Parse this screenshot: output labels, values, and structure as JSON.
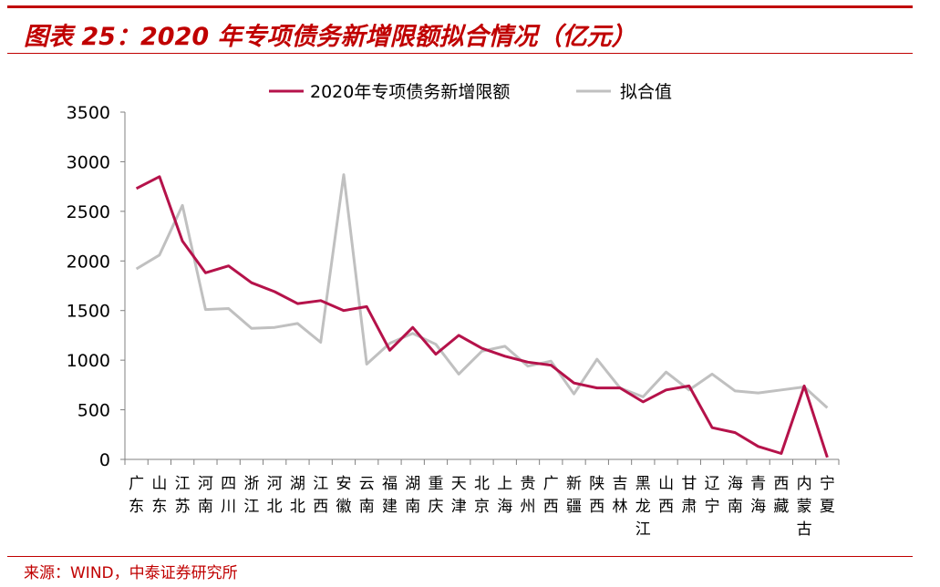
{
  "header": {
    "title": "图表 25：2020 年专项债务新增限额拟合情况（亿元）",
    "accent_color": "#c00000"
  },
  "footer": {
    "source": "来源：WIND，中泰证券研究所"
  },
  "chart_data": {
    "type": "line",
    "title": "",
    "xlabel": "",
    "ylabel": "",
    "ylim": [
      0,
      3500
    ],
    "yticks": [
      0,
      500,
      1000,
      1500,
      2000,
      2500,
      3000,
      3500
    ],
    "grid": false,
    "legend_position": "top",
    "categories": [
      "广东",
      "山东",
      "江苏",
      "河南",
      "四川",
      "浙江",
      "河北",
      "湖北",
      "江西",
      "安徽",
      "云南",
      "福建",
      "湖南",
      "重庆",
      "天津",
      "北京",
      "上海",
      "贵州",
      "广西",
      "新疆",
      "陕西",
      "吉林",
      "黑龙江",
      "山西",
      "甘肃",
      "辽宁",
      "海南",
      "青海",
      "西藏",
      "内蒙古",
      "宁夏"
    ],
    "series": [
      {
        "name": "2020年专项债务新增限额",
        "color": "#b5124a",
        "values": [
          2730,
          2850,
          2200,
          1880,
          1950,
          1780,
          1690,
          1570,
          1600,
          1500,
          1540,
          1100,
          1330,
          1060,
          1250,
          1120,
          1040,
          980,
          950,
          770,
          720,
          720,
          580,
          700,
          740,
          320,
          270,
          130,
          60,
          740,
          20
        ]
      },
      {
        "name": "拟合值",
        "color": "#c0c0c0",
        "values": [
          1920,
          2060,
          2560,
          1510,
          1520,
          1320,
          1330,
          1370,
          1180,
          2870,
          960,
          1170,
          1270,
          1160,
          860,
          1090,
          1140,
          940,
          990,
          660,
          1010,
          720,
          630,
          880,
          700,
          860,
          690,
          670,
          700,
          730,
          520
        ]
      }
    ]
  }
}
